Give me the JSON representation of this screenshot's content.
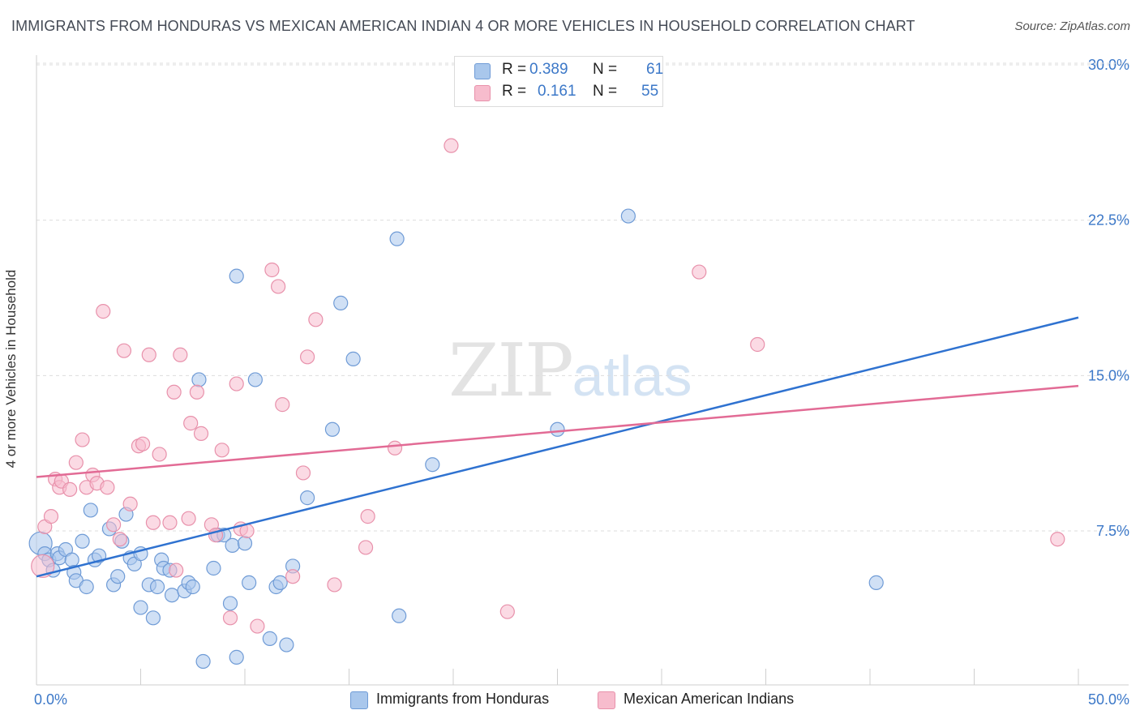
{
  "title": "IMMIGRANTS FROM HONDURAS VS MEXICAN AMERICAN INDIAN 4 OR MORE VEHICLES IN HOUSEHOLD CORRELATION CHART",
  "source": "Source: ZipAtlas.com",
  "watermark": {
    "zip": "ZIP",
    "atlas": "atlas"
  },
  "legend_top": {
    "r_label": "R =",
    "n_label": "N =",
    "rows": [
      {
        "r": "0.389",
        "n": "61"
      },
      {
        "r": "0.161",
        "n": "55"
      }
    ]
  },
  "colors": {
    "blue_fill": "#a9c7ec",
    "blue_edge": "#6f9bd6",
    "blue_line": "#2f72d0",
    "pink_fill": "#f7bccd",
    "pink_edge": "#e891ab",
    "pink_line": "#e26b95",
    "tick": "#3c78c8",
    "grid": "#dddddd"
  },
  "chart_data": {
    "type": "scatter",
    "title": "IMMIGRANTS FROM HONDURAS VS MEXICAN AMERICAN INDIAN 4 OR MORE VEHICLES IN HOUSEHOLD CORRELATION CHART",
    "xlabel": "",
    "ylabel": "4 or more Vehicles in Household",
    "xlim": [
      0,
      50
    ],
    "ylim": [
      0,
      31
    ],
    "x_tick_labels": [
      {
        "value": 0,
        "label": "0.0%"
      },
      {
        "value": 50,
        "label": "50.0%"
      }
    ],
    "y_tick_labels": [
      {
        "value": 7.5,
        "label": "7.5%"
      },
      {
        "value": 15.0,
        "label": "15.0%"
      },
      {
        "value": 22.5,
        "label": "22.5%"
      },
      {
        "value": 30.0,
        "label": "30.0%"
      }
    ],
    "x_minor_ticks": [
      0,
      5,
      10,
      15,
      20,
      25,
      30,
      35,
      40,
      45,
      50
    ],
    "grid": true,
    "legend_position": "bottom",
    "series": [
      {
        "name": "Immigrants from Honduras",
        "color": "#a9c7ec",
        "trend": {
          "x": [
            0,
            50
          ],
          "y": [
            5.3,
            17.8
          ]
        },
        "points": [
          [
            0.2,
            6.9
          ],
          [
            0.4,
            6.4
          ],
          [
            0.6,
            6.1
          ],
          [
            0.8,
            5.6
          ],
          [
            1.0,
            6.4
          ],
          [
            1.1,
            6.2
          ],
          [
            1.4,
            6.6
          ],
          [
            1.7,
            6.1
          ],
          [
            1.8,
            5.5
          ],
          [
            1.9,
            5.1
          ],
          [
            2.2,
            7.0
          ],
          [
            2.4,
            4.8
          ],
          [
            2.6,
            8.5
          ],
          [
            2.8,
            6.1
          ],
          [
            3.0,
            6.3
          ],
          [
            3.5,
            7.6
          ],
          [
            3.7,
            4.9
          ],
          [
            3.9,
            5.3
          ],
          [
            4.1,
            7.0
          ],
          [
            4.3,
            8.3
          ],
          [
            4.5,
            6.2
          ],
          [
            4.7,
            5.9
          ],
          [
            5.0,
            6.4
          ],
          [
            5.0,
            3.8
          ],
          [
            5.4,
            4.9
          ],
          [
            5.6,
            3.3
          ],
          [
            5.8,
            4.8
          ],
          [
            6.0,
            6.1
          ],
          [
            6.1,
            5.7
          ],
          [
            6.4,
            5.6
          ],
          [
            6.5,
            4.4
          ],
          [
            7.1,
            4.6
          ],
          [
            7.3,
            5.0
          ],
          [
            7.5,
            4.8
          ],
          [
            7.8,
            14.8
          ],
          [
            8.0,
            1.2
          ],
          [
            8.5,
            5.7
          ],
          [
            8.7,
            7.3
          ],
          [
            9.0,
            7.3
          ],
          [
            9.3,
            4.0
          ],
          [
            9.4,
            6.8
          ],
          [
            9.6,
            1.4
          ],
          [
            9.6,
            19.8
          ],
          [
            10.0,
            6.9
          ],
          [
            10.2,
            5.0
          ],
          [
            10.5,
            14.8
          ],
          [
            11.2,
            2.3
          ],
          [
            11.5,
            4.8
          ],
          [
            11.7,
            5.0
          ],
          [
            12.0,
            2.0
          ],
          [
            12.3,
            5.8
          ],
          [
            13.0,
            9.1
          ],
          [
            14.2,
            12.4
          ],
          [
            14.6,
            18.5
          ],
          [
            15.2,
            15.8
          ],
          [
            17.3,
            21.6
          ],
          [
            17.4,
            3.4
          ],
          [
            19.0,
            10.7
          ],
          [
            25.0,
            12.4
          ],
          [
            28.4,
            22.7
          ],
          [
            40.3,
            5.0
          ]
        ]
      },
      {
        "name": "Mexican American Indians",
        "color": "#f7bccd",
        "trend": {
          "x": [
            0,
            50
          ],
          "y": [
            10.1,
            14.5
          ]
        },
        "points": [
          [
            0.3,
            5.8
          ],
          [
            0.4,
            7.7
          ],
          [
            0.7,
            8.2
          ],
          [
            0.9,
            10.0
          ],
          [
            1.1,
            9.6
          ],
          [
            1.2,
            9.9
          ],
          [
            1.6,
            9.5
          ],
          [
            1.9,
            10.8
          ],
          [
            2.2,
            11.9
          ],
          [
            2.4,
            9.6
          ],
          [
            2.7,
            10.2
          ],
          [
            2.9,
            9.8
          ],
          [
            3.2,
            18.1
          ],
          [
            3.4,
            9.6
          ],
          [
            3.7,
            7.8
          ],
          [
            4.0,
            7.1
          ],
          [
            4.2,
            16.2
          ],
          [
            4.5,
            8.8
          ],
          [
            4.9,
            11.6
          ],
          [
            5.1,
            11.7
          ],
          [
            5.4,
            16.0
          ],
          [
            5.9,
            11.2
          ],
          [
            5.6,
            7.9
          ],
          [
            6.4,
            7.9
          ],
          [
            6.6,
            14.2
          ],
          [
            6.7,
            5.6
          ],
          [
            6.9,
            16.0
          ],
          [
            7.3,
            8.1
          ],
          [
            7.4,
            12.7
          ],
          [
            7.7,
            14.2
          ],
          [
            7.9,
            12.2
          ],
          [
            8.4,
            7.8
          ],
          [
            8.6,
            7.3
          ],
          [
            8.9,
            11.4
          ],
          [
            9.3,
            3.3
          ],
          [
            9.6,
            14.6
          ],
          [
            9.8,
            7.6
          ],
          [
            10.1,
            7.5
          ],
          [
            10.6,
            2.9
          ],
          [
            11.3,
            20.1
          ],
          [
            11.6,
            19.3
          ],
          [
            11.8,
            13.6
          ],
          [
            12.3,
            5.3
          ],
          [
            12.8,
            10.3
          ],
          [
            13.0,
            15.9
          ],
          [
            13.4,
            17.7
          ],
          [
            14.3,
            4.9
          ],
          [
            15.8,
            6.7
          ],
          [
            15.9,
            8.2
          ],
          [
            17.2,
            11.5
          ],
          [
            19.9,
            26.1
          ],
          [
            22.6,
            3.6
          ],
          [
            31.8,
            20.0
          ],
          [
            34.6,
            16.5
          ],
          [
            49.0,
            7.1
          ]
        ]
      }
    ]
  }
}
